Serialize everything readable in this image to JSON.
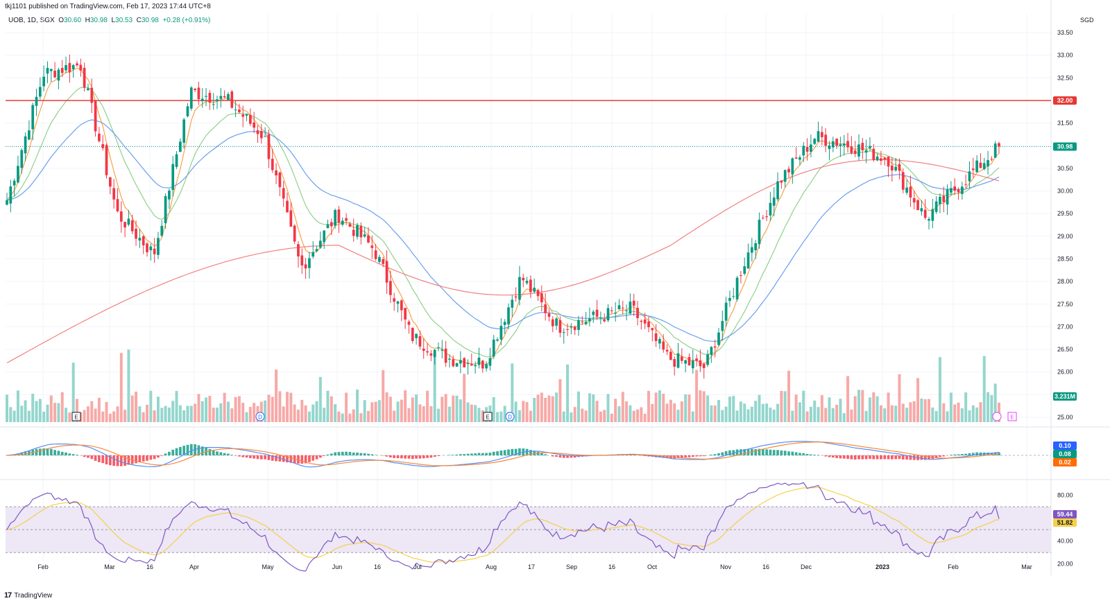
{
  "header": {
    "publish_line": "tkj1101 published on TradingView.com, Feb 17, 2023 17:44 UTC+8",
    "symbol": "UOB, 1D, SGX",
    "o_label": "O",
    "o_value": "30.60",
    "h_label": "H",
    "h_value": "30.98",
    "l_label": "L",
    "l_value": "30.53",
    "c_label": "C",
    "c_value": "30.98",
    "change": "+0.28 (+0.91%)",
    "currency": "SGD"
  },
  "footer": {
    "brand": "TradingView",
    "logo_glyph": "17"
  },
  "colors": {
    "up": "#089981",
    "down": "#f23645",
    "up_vol": "#94d6cd",
    "down_vol": "#f7a9a7",
    "ema_short": "#f7a24b",
    "ema_mid": "#91d08b",
    "ema_long": "#6a9ff0",
    "ema_200": "#f28080",
    "resistance": "#e53935",
    "macd": "#5b8cf2",
    "signal": "#f7893b",
    "rsi": "#7e57c2",
    "rsi_ma": "#f5d04a",
    "rsi_band": "#ede7f6"
  },
  "price_axis": {
    "labels": [
      "33.50",
      "33.00",
      "32.50",
      "32.00",
      "31.50",
      "31.00",
      "30.50",
      "30.00",
      "29.50",
      "29.00",
      "28.50",
      "28.00",
      "27.50",
      "27.00",
      "26.50",
      "26.00",
      "25.50",
      "25.00"
    ],
    "resistance_tag": "32.00",
    "last_price_tag": "30.98",
    "volume_tag": "3.231M"
  },
  "macd_axis": {
    "tags": [
      "0.10",
      "0.08",
      "0.02"
    ]
  },
  "rsi_axis": {
    "labels": [
      "80.00",
      "60.00",
      "40.00",
      "20.00"
    ],
    "tags": [
      "59.44",
      "51.82"
    ]
  },
  "time_axis": {
    "labels": [
      "Feb",
      "Mar",
      "16",
      "Apr",
      "May",
      "Jun",
      "16",
      "Jul",
      "Aug",
      "17",
      "Sep",
      "16",
      "Oct",
      "Nov",
      "16",
      "Dec",
      "2023",
      "Feb",
      "Mar"
    ]
  },
  "event_markers": [
    "E",
    "D",
    "E",
    "D",
    "E"
  ],
  "chart_data": {
    "type": "candlestick",
    "symbol": "UOB",
    "interval": "1D",
    "exchange": "SGX",
    "currency": "SGD",
    "price_range": [
      25.0,
      33.5
    ],
    "resistance_level": 32.0,
    "last_close": 30.98,
    "last_ohlc": {
      "open": 30.6,
      "high": 30.98,
      "low": 30.53,
      "close": 30.98
    },
    "change": 0.28,
    "change_pct": 0.91,
    "months": [
      "Feb",
      "Mar",
      "Apr",
      "May",
      "Jun",
      "Jul",
      "Aug",
      "Sep",
      "Oct",
      "Nov",
      "Dec",
      "2023",
      "Feb",
      "Mar"
    ],
    "price_path": [
      {
        "t": "Jan",
        "p": 29.8
      },
      {
        "t": "Feb",
        "p": 32.6
      },
      {
        "t": "Feb",
        "p": 32.8
      },
      {
        "t": "Mar",
        "p": 29.5
      },
      {
        "t": "Mar",
        "p": 28.6
      },
      {
        "t": "16",
        "p": 32.2
      },
      {
        "t": "Apr",
        "p": 32.0
      },
      {
        "t": "Apr",
        "p": 31.2
      },
      {
        "t": "May",
        "p": 28.3
      },
      {
        "t": "May",
        "p": 29.5
      },
      {
        "t": "Jun",
        "p": 28.7
      },
      {
        "t": "16",
        "p": 26.8
      },
      {
        "t": "Jul",
        "p": 26.3
      },
      {
        "t": "Jul",
        "p": 26.2
      },
      {
        "t": "Aug",
        "p": 28.1
      },
      {
        "t": "17",
        "p": 27.0
      },
      {
        "t": "Sep",
        "p": 27.2
      },
      {
        "t": "16",
        "p": 27.4
      },
      {
        "t": "Oct",
        "p": 26.3
      },
      {
        "t": "Oct",
        "p": 26.1
      },
      {
        "t": "Nov",
        "p": 28.3
      },
      {
        "t": "16",
        "p": 30.2
      },
      {
        "t": "Dec",
        "p": 31.2
      },
      {
        "t": "Dec",
        "p": 31.0
      },
      {
        "t": "2023",
        "p": 30.7
      },
      {
        "t": "2023",
        "p": 29.4
      },
      {
        "t": "Feb",
        "p": 30.2
      },
      {
        "t": "Feb",
        "p": 30.98
      }
    ],
    "volume": {
      "last": "3.231M"
    },
    "macd": {
      "macd": 0.1,
      "signal": 0.08,
      "histogram": 0.02
    },
    "rsi": {
      "value": 59.44,
      "ma": 51.82,
      "upper_band": 70,
      "lower_band": 30,
      "range": [
        20,
        90
      ]
    }
  }
}
